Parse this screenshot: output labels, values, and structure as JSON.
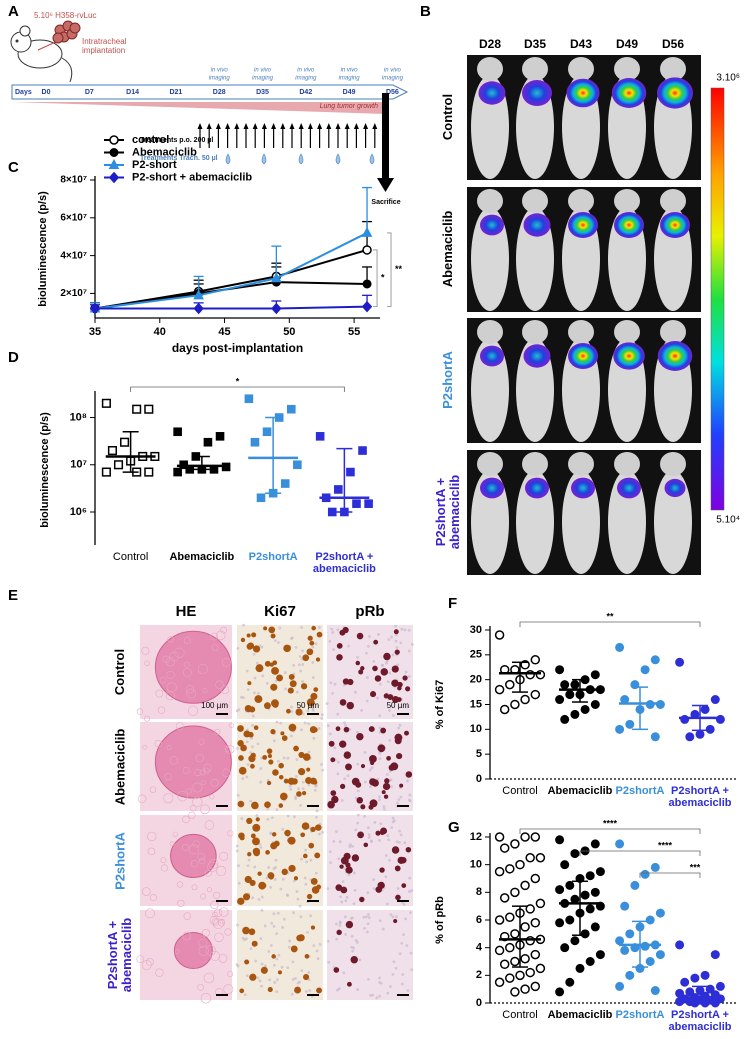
{
  "letters": [
    "A",
    "B",
    "C",
    "D",
    "E",
    "F",
    "G"
  ],
  "schema": {
    "cells": "5.10⁶ H358-rvLuc",
    "implantation": "Intratracheal implantation",
    "days_label": "Days",
    "days": [
      "D0",
      "D7",
      "D14",
      "D21",
      "D28",
      "D35",
      "D42",
      "D49",
      "D56"
    ],
    "imaging": [
      "in vivo",
      "imaging"
    ],
    "growth": "Lung tumor growth",
    "treatment_po": "Treatments p.o. 200 µl",
    "treatment_trach": "Treatments Trach. 50 µl",
    "sacrifice": "Sacrifice"
  },
  "imaging": {
    "days": [
      "D28",
      "D35",
      "D43",
      "D49",
      "D56"
    ],
    "rows": [
      "Control",
      "Abemaciclib",
      "P2shortA",
      "P2shortA + abemaciclib"
    ],
    "row_colors": [
      "#000000",
      "#000000",
      "#3a8fdb",
      "#3d22c8"
    ],
    "scale_max": "3.10⁶",
    "scale_min": "5.10⁴"
  },
  "histology": {
    "columns": [
      "HE",
      "Ki67",
      "pRb"
    ],
    "rows": [
      "Control",
      "Abemaciclib",
      "P2shortA",
      "P2shortA + abemaciclib"
    ],
    "row_colors": [
      "#000000",
      "#000000",
      "#3a8fdb",
      "#3d22c8"
    ],
    "scale_bars": [
      "100 µm",
      "50 µm",
      "50 µm"
    ]
  },
  "chart_data": [
    {
      "type": "line",
      "y_label": "bioluminescence (p/s)",
      "x_label": "days post-implantation",
      "xlim": [
        35,
        57
      ],
      "xticks": [
        35,
        40,
        45,
        50,
        55
      ],
      "ylim": [
        7000000,
        80000000
      ],
      "yticks": [
        {
          "value": 20000000,
          "label": "2×10⁷"
        },
        {
          "value": 40000000,
          "label": "4×10⁷"
        },
        {
          "value": 60000000,
          "label": "6×10⁷"
        },
        {
          "value": 80000000,
          "label": "8×10⁷"
        }
      ],
      "x": [
        35,
        43,
        49,
        56
      ],
      "series": [
        {
          "name": "control",
          "color": "#000000",
          "marker": "circle",
          "open": true,
          "values": [
            12000000,
            21000000,
            29000000,
            43000000
          ],
          "errors": [
            3000000,
            6000000,
            7000000,
            15000000
          ]
        },
        {
          "name": "Abemaciclib",
          "color": "#000000",
          "marker": "circle",
          "open": false,
          "values": [
            12000000,
            20000000,
            26000000,
            25000000
          ],
          "errors": [
            3000000,
            5000000,
            8000000,
            9000000
          ]
        },
        {
          "name": "P2-short",
          "color": "#2b8ee0",
          "marker": "triangle",
          "open": false,
          "values": [
            12000000,
            19000000,
            28000000,
            52000000
          ],
          "errors": [
            3000000,
            10000000,
            17000000,
            24000000
          ]
        },
        {
          "name": "P2-short + abemaciclib",
          "color": "#1d1dc8",
          "marker": "diamond",
          "open": false,
          "values": [
            12000000,
            12000000,
            12000000,
            13000000
          ],
          "errors": [
            2000000,
            3000000,
            4000000,
            6000000
          ]
        }
      ],
      "annotations": [
        {
          "text": "*",
          "between": [
            0,
            3
          ]
        },
        {
          "text": "**",
          "between": [
            2,
            3
          ]
        }
      ]
    },
    {
      "type": "strip",
      "y_label": "bioluminescence (p/s)",
      "log_scale": true,
      "ylim": [
        200000,
        300000000
      ],
      "yticks": [
        {
          "value": 1000000,
          "label": "10⁶"
        },
        {
          "value": 10000000,
          "label": "10⁷"
        },
        {
          "value": 100000000,
          "label": "10⁸"
        }
      ],
      "categories": [
        "Control",
        "Abemaciclib",
        "P2shortA",
        "P2shortA + abemaciclib"
      ],
      "category_colors": [
        "#000000",
        "#000000",
        "#3a8fdb",
        "#2e2ed6"
      ],
      "markers": [
        "square",
        "square",
        "square",
        "square"
      ],
      "open": [
        true,
        false,
        false,
        false
      ],
      "groups": [
        {
          "values": [
            200000000,
            150000000,
            150000000,
            30000000,
            20000000,
            15000000,
            15000000,
            12000000,
            10000000,
            7000000,
            7000000,
            7000000
          ],
          "center": 15000000,
          "error": [
            7000000,
            50000000
          ]
        },
        {
          "values": [
            50000000,
            40000000,
            30000000,
            15000000,
            10000000,
            9000000,
            8000000,
            8000000,
            8000000,
            7000000
          ],
          "center": 9500000,
          "error": [
            8000000,
            15000000
          ]
        },
        {
          "values": [
            250000000,
            150000000,
            100000000,
            50000000,
            30000000,
            10000000,
            4000000,
            2500000,
            2000000
          ],
          "center": 14000000,
          "error": [
            2500000,
            100000000
          ]
        },
        {
          "values": [
            40000000,
            20000000,
            7000000,
            3000000,
            2000000,
            1500000,
            1500000,
            1000000,
            1000000
          ],
          "center": 2000000,
          "error": [
            1000000,
            22000000
          ]
        }
      ],
      "annotations": [
        {
          "text": "*",
          "from": 0,
          "to": 3
        }
      ]
    },
    {
      "type": "strip",
      "y_label": "% of Ki67",
      "ylim": [
        0,
        30
      ],
      "yticks": [
        0,
        5,
        10,
        15,
        20,
        25,
        30
      ],
      "categories": [
        "Control",
        "Abemaciclib",
        "P2shortA",
        "P2shortA + abemaciclib"
      ],
      "category_colors": [
        "#000000",
        "#000000",
        "#3a8fdb",
        "#2e2ed6"
      ],
      "markers": [
        "circle",
        "circle",
        "circle",
        "circle"
      ],
      "open": [
        true,
        false,
        false,
        false
      ],
      "groups": [
        {
          "values": [
            29,
            24,
            23,
            22,
            22,
            21,
            21,
            20,
            19,
            18,
            17,
            16,
            15,
            14
          ],
          "center": 21.3,
          "error": [
            17.5,
            23.5
          ]
        },
        {
          "values": [
            22,
            21,
            20,
            19,
            19,
            18,
            18,
            17,
            17,
            16,
            15,
            14,
            13,
            12
          ],
          "center": 18,
          "error": [
            15.5,
            20
          ]
        },
        {
          "values": [
            26.5,
            24,
            22,
            19,
            16,
            15,
            15,
            14,
            11,
            10,
            8.5
          ],
          "center": 15.2,
          "error": [
            10,
            18.5
          ]
        },
        {
          "values": [
            23.5,
            16,
            14,
            13,
            12,
            12,
            10,
            9,
            8.5
          ],
          "center": 12.3,
          "error": [
            9.8,
            14.8
          ]
        }
      ],
      "annotations": [
        {
          "text": "**",
          "from": 0,
          "to": 3
        }
      ]
    },
    {
      "type": "strip",
      "y_label": "% of pRb",
      "ylim": [
        0,
        12
      ],
      "yticks": [
        0,
        2,
        4,
        6,
        8,
        10,
        12
      ],
      "categories": [
        "Control",
        "Abemaciclib",
        "P2shortA",
        "P2shortA + abemaciclib"
      ],
      "category_colors": [
        "#000000",
        "#000000",
        "#3a8fdb",
        "#2e2ed6"
      ],
      "markers": [
        "circle",
        "circle",
        "circle",
        "circle"
      ],
      "open": [
        true,
        false,
        false,
        false
      ],
      "groups": [
        {
          "values": [
            12,
            12,
            12,
            11.5,
            11.2,
            10.5,
            10.5,
            10,
            9.7,
            9.5,
            9,
            8.5,
            8,
            7.6,
            7.2,
            6.8,
            6.5,
            6.2,
            6,
            5.8,
            5.5,
            5,
            4.8,
            4.6,
            4.5,
            4.2,
            4,
            3.8,
            3.5,
            3.2,
            3,
            2.8,
            2.5,
            2.2,
            2,
            1.8,
            1.5,
            1.2,
            1,
            0.8
          ],
          "center": 4.6,
          "error": [
            2.6,
            7
          ]
        },
        {
          "values": [
            11.8,
            11.5,
            11,
            10.8,
            10,
            9.5,
            9.2,
            9,
            8.5,
            8.2,
            8,
            7.8,
            7.5,
            7.2,
            7,
            6.8,
            6.5,
            6,
            5.8,
            5.5,
            5,
            4.5,
            4,
            3.5,
            3,
            2.5,
            1.5,
            0.8
          ],
          "center": 7.2,
          "error": [
            4.9,
            8.8
          ]
        },
        {
          "values": [
            11.5,
            9.8,
            9.3,
            8.5,
            7,
            6.5,
            6,
            5.5,
            5,
            4.5,
            4.2,
            4.1,
            4,
            3.8,
            3.5,
            3,
            2.5,
            2,
            1.2,
            0.9
          ],
          "center": 4.2,
          "error": [
            2.6,
            5.9
          ]
        },
        {
          "values": [
            4.2,
            3.5,
            2,
            1.8,
            1.5,
            1.2,
            1,
            0.9,
            0.8,
            0.7,
            0.6,
            0.5,
            0.4,
            0.3,
            0.3,
            0.2,
            0.2,
            0.1,
            0.1,
            0,
            0,
            0
          ],
          "center": 0.4,
          "error": [
            0,
            1.2
          ]
        }
      ],
      "annotations": [
        {
          "text": "****",
          "from": 0,
          "to": 3
        },
        {
          "text": "****",
          "from": 1,
          "to": 3
        },
        {
          "text": "***",
          "from": 2,
          "to": 3
        }
      ]
    }
  ]
}
